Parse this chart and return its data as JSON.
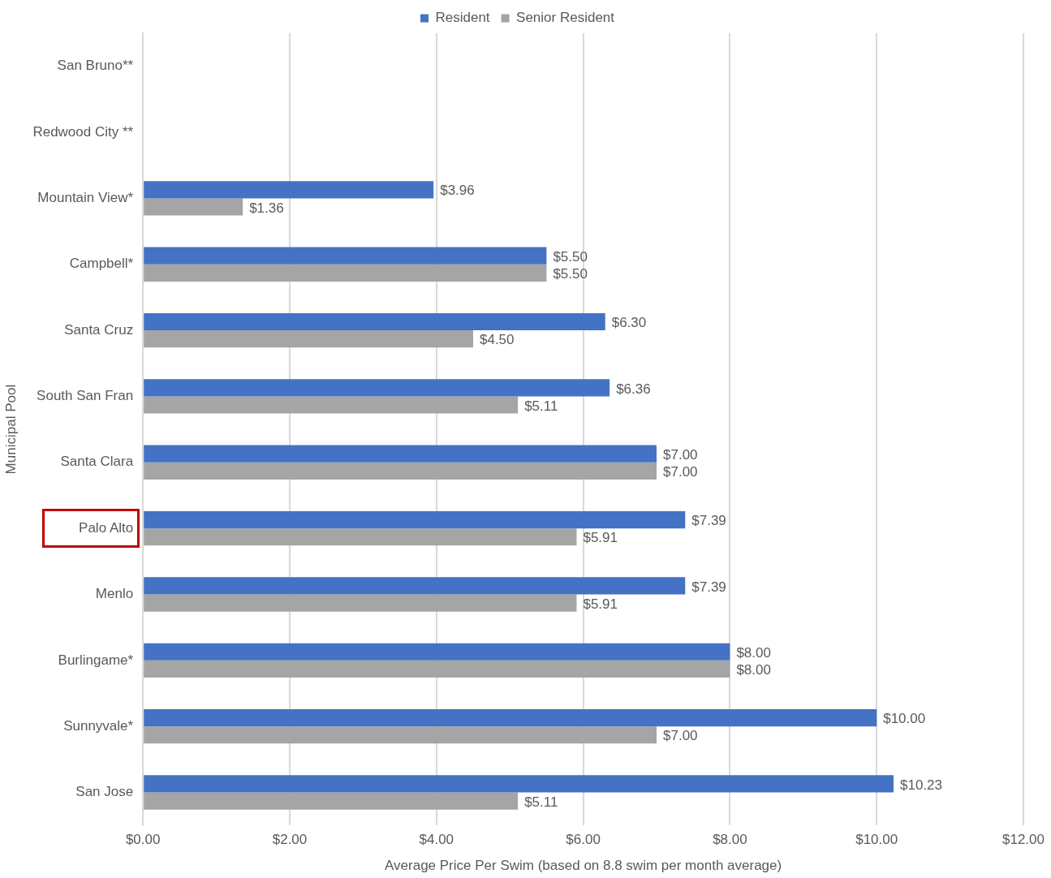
{
  "chart_data": {
    "type": "bar",
    "orientation": "horizontal",
    "xlabel": "Average Price Per Swim (based on 8.8 swim per month average)",
    "ylabel": "Municipal Pool",
    "categories": [
      "San Bruno**",
      "Redwood City **",
      "Mountain View*",
      "Campbell*",
      "Santa Cruz",
      "South San Fran",
      "Santa Clara",
      "Palo Alto",
      "Menlo",
      "Burlingame*",
      "Sunnyvale*",
      "San Jose"
    ],
    "series": [
      {
        "name": "Resident",
        "color": "#4472c4",
        "values": [
          null,
          null,
          3.96,
          5.5,
          6.3,
          6.36,
          7,
          7.39,
          7.39,
          8,
          10,
          10.23
        ],
        "value_labels": [
          null,
          null,
          "$3.96",
          "$5.50",
          "$6.30",
          "$6.36",
          "$7.00",
          "$7.39",
          "$7.39",
          "$8.00",
          "$10.00",
          "$10.23"
        ]
      },
      {
        "name": "Senior Resident",
        "color": "#a5a5a5",
        "values": [
          null,
          null,
          1.36,
          5.5,
          4.5,
          5.11,
          7,
          5.91,
          5.91,
          8,
          7,
          5.11
        ],
        "value_labels": [
          null,
          null,
          "$1.36",
          "$5.50",
          "$4.50",
          "$5.11",
          "$7.00",
          "$5.91",
          "$5.91",
          "$8.00",
          "$7.00",
          "$5.11"
        ]
      }
    ],
    "xlim": [
      0,
      12
    ],
    "xticks": [
      {
        "value": 0,
        "label": "$0.00"
      },
      {
        "value": 2,
        "label": "$2.00"
      },
      {
        "value": 4,
        "label": "$4.00"
      },
      {
        "value": 6,
        "label": "$6.00"
      },
      {
        "value": 8,
        "label": "$8.00"
      },
      {
        "value": 10,
        "label": "$10.00"
      },
      {
        "value": 12,
        "label": "$12.00"
      }
    ],
    "grid": "x",
    "legend": "top"
  }
}
